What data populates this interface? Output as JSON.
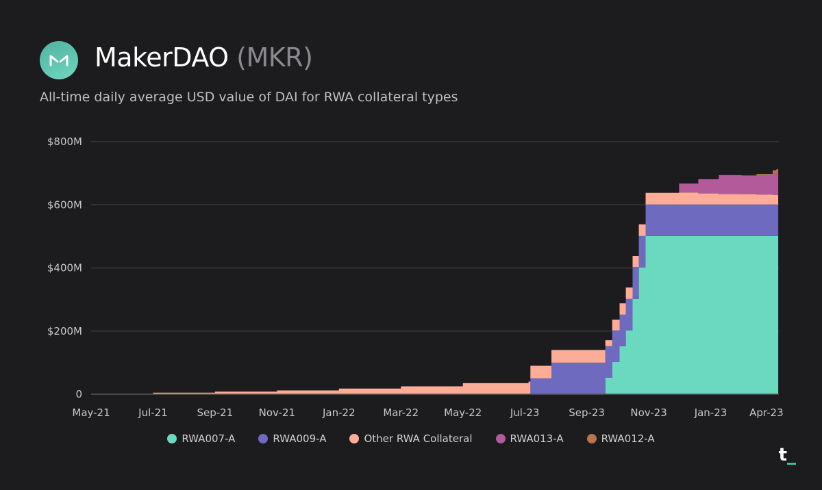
{
  "header": {
    "name": "MakerDAO",
    "ticker": "(MKR)",
    "subtitle": "All-time daily average USD value of DAI for RWA collateral types",
    "brand": "t",
    "brand_accent": "_"
  },
  "chart_data": {
    "type": "area",
    "title": "All-time daily average USD value of DAI for RWA collateral types",
    "xlabel": "",
    "ylabel": "",
    "ylim": [
      0,
      800
    ],
    "yticks": [
      {
        "v": 0,
        "label": "0"
      },
      {
        "v": 200,
        "label": "$200M"
      },
      {
        "v": 400,
        "label": "$400M"
      },
      {
        "v": 600,
        "label": "$600M"
      },
      {
        "v": 800,
        "label": "$800M"
      }
    ],
    "xticks": [
      {
        "v": 0,
        "label": "May-21"
      },
      {
        "v": 1,
        "label": "Jul-21"
      },
      {
        "v": 2,
        "label": "Sep-21"
      },
      {
        "v": 3,
        "label": "Nov-21"
      },
      {
        "v": 4,
        "label": "Jan-22"
      },
      {
        "v": 5,
        "label": "Mar-22"
      },
      {
        "v": 6,
        "label": "May-22"
      },
      {
        "v": 7,
        "label": "Jul-23"
      },
      {
        "v": 8,
        "label": "Sep-23"
      },
      {
        "v": 9,
        "label": "Nov-23"
      },
      {
        "v": 10,
        "label": "Jan-23"
      },
      {
        "v": 10.9,
        "label": "Apr-23"
      }
    ],
    "xlim": [
      0,
      11.1
    ],
    "grid": true,
    "legend_position": "bottom",
    "x": [
      0,
      1,
      2,
      3,
      4,
      5,
      6,
      7.06,
      7.09,
      7.43,
      8.3,
      8.41,
      8.53,
      8.63,
      8.74,
      8.84,
      8.95,
      9.49,
      9.8,
      10.13,
      10.5,
      10.74,
      11.0,
      11.06,
      11.09
    ],
    "series": [
      {
        "name": "RWA007-A",
        "color": "#6ad9c0",
        "values": [
          0,
          0,
          0,
          0,
          0,
          0,
          0,
          0,
          0,
          0,
          52,
          102,
          152,
          202,
          302,
          401,
          501,
          501,
          501,
          501,
          501,
          501,
          501,
          501,
          530
        ]
      },
      {
        "name": "RWA009-A",
        "color": "#6e6abf",
        "values": [
          0,
          0,
          0,
          0,
          0,
          0,
          0,
          0,
          50,
          100,
          100,
          100,
          100,
          100,
          101,
          100,
          100,
          100,
          100,
          100,
          100,
          100,
          100,
          100,
          100
        ]
      },
      {
        "name": "Other RWA Collateral",
        "color": "#fdad95",
        "values": [
          1,
          5,
          8,
          12,
          18,
          25,
          35,
          40,
          40,
          40,
          19,
          34,
          36,
          36,
          35,
          37,
          37,
          38,
          35,
          33,
          32,
          31,
          30,
          30,
          30
        ]
      },
      {
        "name": "RWA013-A",
        "color": "#b35a9b",
        "values": [
          0,
          0,
          0,
          0,
          0,
          0,
          0,
          0,
          0,
          0,
          0,
          0,
          0,
          0,
          0,
          0,
          0,
          28,
          45,
          60,
          60,
          62,
          68,
          70,
          90
        ]
      },
      {
        "name": "RWA012-A",
        "color": "#b8744a",
        "values": [
          0,
          0,
          0,
          0,
          0,
          0,
          0,
          0,
          0,
          0,
          0,
          0,
          0,
          0,
          0,
          0,
          0,
          0,
          0,
          0,
          0,
          4,
          10,
          12,
          20
        ]
      }
    ]
  }
}
